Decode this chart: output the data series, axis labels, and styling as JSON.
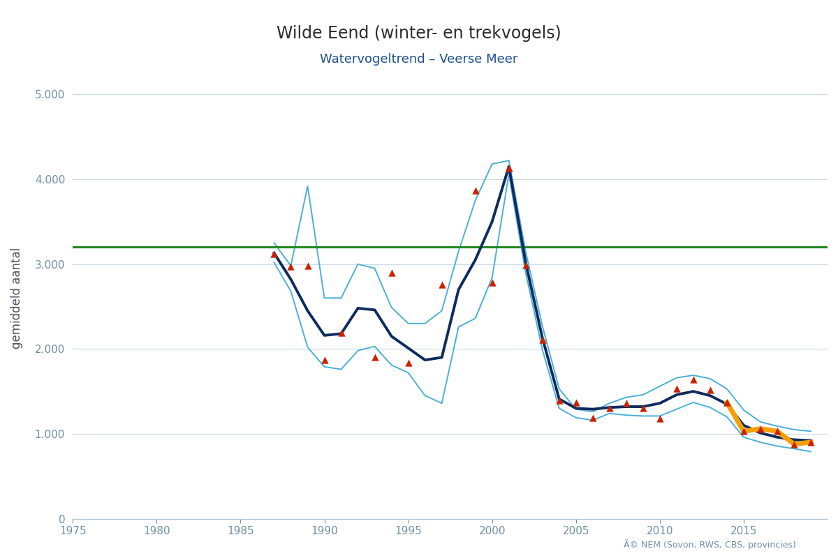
{
  "title": "Wilde Eend (winter- en trekvogels)",
  "subtitle": "Watervogeltrend – Veerse Meer",
  "ylabel": "gemiddeld aantal",
  "copyright": "Ã© NEM (Sovon, RWS, CBS, provincies)",
  "xlim": [
    1975,
    2020
  ],
  "ylim": [
    0,
    5200
  ],
  "yticks": [
    0,
    1000,
    2000,
    3000,
    4000,
    5000
  ],
  "xticks": [
    1975,
    1980,
    1985,
    1990,
    1995,
    2000,
    2005,
    2010,
    2015
  ],
  "background_color": "#ffffff",
  "grid_color": "#c8d8e8",
  "axis_color": "#a8c0d0",
  "tick_label_color": "#7090a0",
  "title_color": "#2d2d2d",
  "subtitle_color": "#1a5090",
  "ylabel_color": "#505060",
  "green_line_y": 3200,
  "green_line_color": "#228822",
  "orange_line_color": "#f5a000",
  "dark_blue_line_color": "#0d2b5e",
  "light_blue_line_color": "#4ab0d8",
  "red_triangle_color": "#cc2200",
  "trend_years": [
    1987,
    1988,
    1989,
    1990,
    1991,
    1992,
    1993,
    1994,
    1995,
    1996,
    1997,
    1998,
    1999,
    2000,
    2001,
    2002,
    2003,
    2004,
    2005,
    2006,
    2007,
    2008,
    2009,
    2010,
    2011,
    2012,
    2013,
    2014,
    2015,
    2016,
    2017,
    2018,
    2019
  ],
  "trend_center": [
    3130,
    2820,
    2450,
    2160,
    2180,
    2480,
    2460,
    2150,
    2010,
    1870,
    1900,
    2700,
    3050,
    3500,
    4150,
    3020,
    2130,
    1410,
    1300,
    1290,
    1310,
    1320,
    1320,
    1360,
    1460,
    1500,
    1450,
    1350,
    1100,
    1010,
    960,
    930,
    920
  ],
  "trend_upper": [
    3250,
    2980,
    3920,
    2600,
    2600,
    3000,
    2950,
    2490,
    2300,
    2300,
    2450,
    3150,
    3750,
    4180,
    4220,
    3150,
    2270,
    1530,
    1290,
    1260,
    1360,
    1430,
    1460,
    1560,
    1660,
    1690,
    1650,
    1530,
    1280,
    1140,
    1090,
    1050,
    1030
  ],
  "trend_lower": [
    3020,
    2680,
    2020,
    1790,
    1760,
    1980,
    2030,
    1810,
    1720,
    1450,
    1360,
    2260,
    2360,
    2840,
    4060,
    2900,
    1990,
    1300,
    1190,
    1160,
    1240,
    1220,
    1210,
    1210,
    1290,
    1370,
    1310,
    1200,
    960,
    900,
    855,
    825,
    790
  ],
  "obs_years": [
    1987,
    1988,
    1989,
    1990,
    1991,
    1993,
    1994,
    1995,
    1997,
    1999,
    2000,
    2001,
    2002,
    2003,
    2004,
    2005,
    2006,
    2007,
    2008,
    2009,
    2010,
    2011,
    2012,
    2013,
    2014,
    2015,
    2016,
    2017,
    2018,
    2019
  ],
  "obs_values": [
    3120,
    2970,
    2980,
    1870,
    2190,
    1900,
    2900,
    1840,
    2760,
    3870,
    2780,
    4130,
    2990,
    2110,
    1390,
    1370,
    1190,
    1300,
    1360,
    1300,
    1180,
    1530,
    1640,
    1520,
    1370,
    1030,
    1060,
    1030,
    880,
    900
  ],
  "orange_years": [
    2014,
    2015,
    2016,
    2017,
    2018,
    2019
  ],
  "orange_values": [
    1370,
    1030,
    1060,
    1030,
    880,
    900
  ]
}
